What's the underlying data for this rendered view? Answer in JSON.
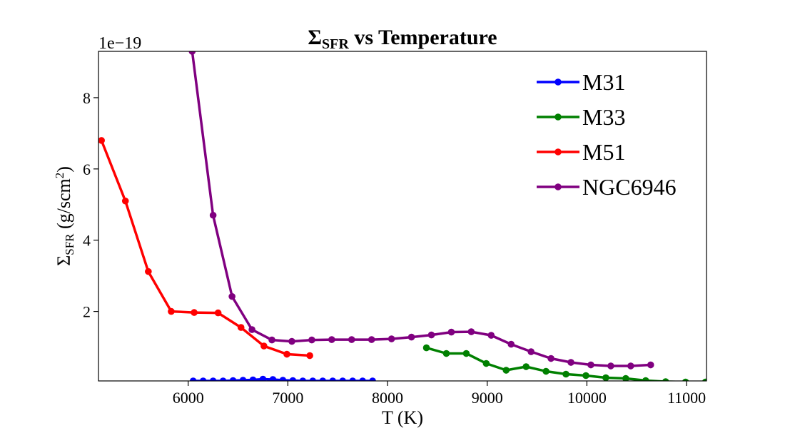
{
  "chart_data": {
    "type": "line",
    "title": {
      "main": "Σ",
      "sub": "SFR",
      "tail": " vs Temperature"
    },
    "xlabel": "T (K)",
    "ylabel": {
      "main": "Σ",
      "sub": "SFR",
      "tail": " (g/scm",
      "sup": "2",
      "close": ")"
    },
    "offset_text": "1e−19",
    "xlim": [
      5100,
      11200
    ],
    "ylim": [
      0.05,
      9.3
    ],
    "xticks": [
      6000,
      7000,
      8000,
      9000,
      10000,
      11000
    ],
    "yticks": [
      2,
      4,
      6,
      8
    ],
    "legend_position": "upper right",
    "series": [
      {
        "name": "M31",
        "color": "#0000ff",
        "x": [
          6050,
          6150,
          6250,
          6350,
          6450,
          6550,
          6650,
          6750,
          6850,
          6950,
          7050,
          7150,
          7250,
          7350,
          7450,
          7550,
          7650,
          7750,
          7850
        ],
        "y": [
          0.05,
          0.05,
          0.05,
          0.05,
          0.06,
          0.07,
          0.08,
          0.1,
          0.09,
          0.07,
          0.06,
          0.05,
          0.05,
          0.05,
          0.05,
          0.05,
          0.05,
          0.05,
          0.05
        ]
      },
      {
        "name": "M33",
        "color": "#008000",
        "x": [
          8390,
          8590,
          8790,
          8990,
          9190,
          9390,
          9590,
          9790,
          9990,
          10190,
          10390,
          10590,
          10790,
          10990,
          11190
        ],
        "y": [
          0.98,
          0.82,
          0.82,
          0.54,
          0.35,
          0.45,
          0.32,
          0.24,
          0.2,
          0.14,
          0.12,
          0.06,
          0.03,
          0.02,
          0.02
        ]
      },
      {
        "name": "M51",
        "color": "#ff0000",
        "x": [
          5130,
          5370,
          5600,
          5830,
          6060,
          6300,
          6530,
          6760,
          6990,
          7220
        ],
        "y": [
          6.8,
          5.1,
          3.12,
          2.0,
          1.97,
          1.96,
          1.55,
          1.03,
          0.8,
          0.76
        ]
      },
      {
        "name": "NGC6946",
        "color": "#800080",
        "x": [
          6040,
          6250,
          6440,
          6640,
          6840,
          7040,
          7240,
          7440,
          7640,
          7840,
          8040,
          8240,
          8440,
          8640,
          8840,
          9040,
          9240,
          9440,
          9640,
          9840,
          10040,
          10240,
          10440,
          10640
        ],
        "y": [
          9.3,
          4.7,
          2.42,
          1.49,
          1.2,
          1.16,
          1.2,
          1.21,
          1.21,
          1.21,
          1.23,
          1.28,
          1.34,
          1.42,
          1.43,
          1.33,
          1.08,
          0.87,
          0.68,
          0.57,
          0.5,
          0.47,
          0.47,
          0.5
        ]
      }
    ]
  }
}
